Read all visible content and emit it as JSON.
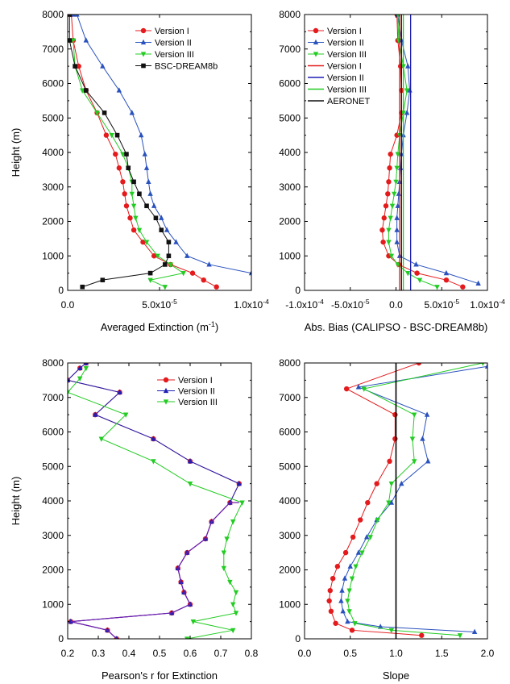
{
  "colors": {
    "red": "#e41a1c",
    "blue": "#1f1fb4",
    "blue2": "#2a52be",
    "green": "#22cc22",
    "black": "#111111",
    "purple": "#6a1fb0"
  },
  "chart_data": [
    {
      "id": "tl",
      "type": "line",
      "xlabel": "Averaged Extinction (m",
      "xlabel_sup": "-1",
      "xlabel_end": ")",
      "ylabel": "Height (m)",
      "xlim": [
        0,
        0.0001
      ],
      "ylim": [
        0,
        8000
      ],
      "xticks": [
        0,
        5e-05,
        0.0001
      ],
      "xtick_labels": [
        "0.0",
        "5.0x10",
        "1.0x10"
      ],
      "xtick_sups": [
        "",
        "-5",
        "-4"
      ],
      "yticks": [
        0,
        1000,
        2000,
        3000,
        4000,
        5000,
        6000,
        7000,
        8000
      ],
      "ytick_labels": [
        "0",
        "1000",
        "2000",
        "3000",
        "4000",
        "5000",
        "6000",
        "7000",
        "8000"
      ],
      "legend_position": "top-right",
      "series": [
        {
          "name": "Version I",
          "color": "red",
          "marker": "circle",
          "x": [
            8.1e-05,
            7.4e-05,
            6.8e-05,
            5.6e-05,
            4.7e-05,
            4.1e-05,
            3.6e-05,
            3.4e-05,
            3.2e-05,
            3.1e-05,
            3e-05,
            2.8e-05,
            2.6e-05,
            2.1e-05,
            1.6e-05,
            1e-05,
            6e-06,
            3e-06,
            2e-06
          ],
          "y": [
            100,
            300,
            500,
            750,
            1000,
            1400,
            1750,
            2100,
            2450,
            2800,
            3150,
            3550,
            3950,
            4500,
            5150,
            5800,
            6500,
            7250,
            8000
          ]
        },
        {
          "name": "Version II",
          "color": "blue2",
          "marker": "triangle-up",
          "x": [
            0.0001,
            7.7e-05,
            6.5e-05,
            5.9e-05,
            5.4e-05,
            5.1e-05,
            4.7e-05,
            4.5e-05,
            4.4e-05,
            4.3e-05,
            4.2e-05,
            4e-05,
            3.5e-05,
            2.8e-05,
            1.9e-05,
            1e-05,
            5e-06,
            3e-06
          ],
          "y": [
            500,
            750,
            1000,
            1400,
            1750,
            2100,
            2450,
            2800,
            3150,
            3550,
            3950,
            4500,
            5150,
            5800,
            6500,
            7250,
            8000,
            8000
          ]
        },
        {
          "name": "Version III",
          "color": "green",
          "marker": "triangle-down",
          "x": [
            5.3e-05,
            4.5e-05,
            6.3e-05,
            5.6e-05,
            4.9e-05,
            4.3e-05,
            3.9e-05,
            3.7e-05,
            3.6e-05,
            3.5e-05,
            3.5e-05,
            3.3e-05,
            3e-05,
            2.4e-05,
            1.6e-05,
            8e-06,
            4e-06,
            3e-06
          ],
          "y": [
            100,
            300,
            500,
            750,
            1000,
            1400,
            1750,
            2100,
            2450,
            2800,
            3150,
            3550,
            3950,
            4500,
            5150,
            5800,
            6500,
            7250
          ]
        },
        {
          "name": "BSC-DREAM8b",
          "color": "black",
          "marker": "square",
          "x": [
            8e-06,
            1.9e-05,
            4.5e-05,
            5.3e-05,
            5.5e-05,
            5.5e-05,
            5.1e-05,
            4.8e-05,
            4.3e-05,
            3.9e-05,
            3.6e-05,
            3.3e-05,
            3.2e-05,
            2.7e-05,
            2e-05,
            1e-05,
            4e-06,
            1e-06,
            1e-06
          ],
          "y": [
            100,
            300,
            500,
            750,
            1000,
            1400,
            1750,
            2100,
            2450,
            2800,
            3150,
            3550,
            3950,
            4500,
            5150,
            5800,
            6500,
            7250,
            8000
          ]
        }
      ]
    },
    {
      "id": "tr",
      "type": "line",
      "xlabel": "Abs. Bias (CALIPSO - BSC-DREAM8b)",
      "ylabel": "",
      "xlim": [
        -0.0001,
        0.0001
      ],
      "ylim": [
        0,
        8000
      ],
      "xticks": [
        -0.0001,
        -5e-05,
        0,
        5e-05,
        0.0001
      ],
      "xtick_labels": [
        "-1.0x10",
        "-5.0x10",
        "0.0",
        "5.0x10",
        "1.0x10"
      ],
      "xtick_sups": [
        "-4",
        "-5",
        "",
        "-5",
        "-4"
      ],
      "yticks": [
        0,
        1000,
        2000,
        3000,
        4000,
        5000,
        6000,
        7000,
        8000
      ],
      "ytick_labels": [
        "0",
        "1000",
        "2000",
        "3000",
        "4000",
        "5000",
        "6000",
        "7000",
        "8000"
      ],
      "legend_position": "top-left",
      "series": [
        {
          "name": "Version I",
          "color": "red",
          "marker": "circle",
          "x": [
            7.3e-05,
            5.5e-05,
            2.3e-05,
            3e-06,
            -8e-06,
            -1.4e-05,
            -1.5e-05,
            -1.3e-05,
            -1.1e-05,
            -9e-06,
            -8e-06,
            -7e-06,
            -6e-06,
            1e-06,
            6e-06,
            6e-06,
            5e-06,
            2e-06,
            1e-06
          ],
          "y": [
            100,
            300,
            500,
            750,
            1000,
            1400,
            1750,
            2100,
            2450,
            2800,
            3150,
            3550,
            3950,
            4500,
            5150,
            5800,
            6500,
            7250,
            8000
          ]
        },
        {
          "name": "Version II",
          "color": "blue2",
          "marker": "triangle-up",
          "x": [
            9e-05,
            5.5e-05,
            2.2e-05,
            4e-06,
            1e-06,
            1e-06,
            1e-06,
            2e-06,
            3e-06,
            4e-06,
            5e-06,
            6e-06,
            8e-06,
            1.2e-05,
            1.5e-05,
            1.3e-05,
            6e-06,
            2e-06
          ],
          "y": [
            200,
            500,
            750,
            1000,
            1400,
            1750,
            2100,
            2450,
            2800,
            3150,
            3550,
            3950,
            4500,
            5150,
            5800,
            6500,
            7250,
            8000
          ]
        },
        {
          "name": "Version III",
          "color": "green",
          "marker": "triangle-down",
          "x": [
            4.5e-05,
            2.6e-05,
            1.3e-05,
            2e-06,
            -5e-06,
            -8e-06,
            -8e-06,
            -6e-06,
            -4e-06,
            -2e-06,
            0.0,
            1e-06,
            2e-06,
            4e-06,
            8e-06,
            1.2e-05,
            8e-06,
            3e-06,
            2e-06
          ],
          "y": [
            100,
            300,
            500,
            750,
            1000,
            1400,
            1750,
            2100,
            2450,
            2800,
            3150,
            3550,
            3950,
            4500,
            5150,
            5800,
            6500,
            7250,
            8000
          ]
        },
        {
          "name": "Version I",
          "color": "red",
          "marker": "none",
          "vline": 4e-06
        },
        {
          "name": "Version II",
          "color": "blue",
          "marker": "none",
          "vline": 1.6e-05
        },
        {
          "name": "Version III",
          "color": "green",
          "marker": "none",
          "vline": 8e-06
        },
        {
          "name": "AERONET",
          "color": "black",
          "marker": "none",
          "vline": 6e-06
        }
      ]
    },
    {
      "id": "bl",
      "type": "line",
      "xlabel": "Pearson's r for Extinction",
      "ylabel": "Height (m)",
      "xlim": [
        0.2,
        0.8
      ],
      "ylim": [
        0,
        8000
      ],
      "xticks": [
        0.2,
        0.3,
        0.4,
        0.5,
        0.6,
        0.7,
        0.8
      ],
      "xtick_labels": [
        "0.2",
        "0.3",
        "0.4",
        "0.5",
        "0.6",
        "0.7",
        "0.8"
      ],
      "xtick_sups": [
        "",
        "",
        "",
        "",
        "",
        "",
        ""
      ],
      "yticks": [
        0,
        1000,
        2000,
        3000,
        4000,
        5000,
        6000,
        7000,
        8000
      ],
      "ytick_labels": [
        "0",
        "1000",
        "2000",
        "3000",
        "4000",
        "5000",
        "6000",
        "7000",
        "8000"
      ],
      "legend_position": "top-right",
      "series": [
        {
          "name": "Version I",
          "color": "red",
          "marker": "circle",
          "x": [
            0.36,
            0.33,
            0.21,
            0.54,
            0.6,
            0.58,
            0.57,
            0.56,
            0.59,
            0.65,
            0.67,
            0.73,
            0.76,
            0.6,
            0.48,
            0.29,
            0.37,
            0.2,
            0.24,
            0.26
          ],
          "y": [
            0,
            250,
            500,
            750,
            1000,
            1350,
            1650,
            2050,
            2500,
            2900,
            3400,
            3950,
            4500,
            5150,
            5800,
            6500,
            7150,
            7500,
            7850,
            8000
          ]
        },
        {
          "name": "Version II",
          "color": "blue",
          "marker": "triangle-up",
          "x": [
            0.36,
            0.33,
            0.21,
            0.54,
            0.6,
            0.58,
            0.57,
            0.56,
            0.59,
            0.65,
            0.67,
            0.73,
            0.76,
            0.6,
            0.48,
            0.29,
            0.37,
            0.2,
            0.24,
            0.26
          ],
          "y": [
            0,
            250,
            500,
            750,
            1000,
            1350,
            1650,
            2050,
            2500,
            2900,
            3400,
            3950,
            4500,
            5150,
            5800,
            6500,
            7150,
            7500,
            7850,
            8000
          ]
        },
        {
          "name": "Version III",
          "color": "green",
          "marker": "triangle-down",
          "x": [
            0.59,
            0.74,
            0.61,
            0.75,
            0.74,
            0.75,
            0.73,
            0.71,
            0.71,
            0.72,
            0.74,
            0.77,
            0.6,
            0.48,
            0.31,
            0.39,
            0.2,
            0.24,
            0.26
          ],
          "y": [
            0,
            250,
            500,
            750,
            1000,
            1350,
            1650,
            2050,
            2500,
            2900,
            3400,
            3950,
            4500,
            5150,
            5800,
            6500,
            7150,
            7550,
            7850
          ]
        },
        {
          "name": "",
          "color": "purple",
          "marker": "none",
          "overlay": true,
          "x": [
            0.36,
            0.33,
            0.21,
            0.54,
            0.6,
            0.58,
            0.57,
            0.56,
            0.59,
            0.65,
            0.67,
            0.73,
            0.76
          ],
          "y": [
            0,
            250,
            500,
            750,
            1000,
            1350,
            1650,
            2050,
            2500,
            2900,
            3400,
            3950,
            3950
          ]
        }
      ]
    },
    {
      "id": "br",
      "type": "line",
      "xlabel": "Slope",
      "ylabel": "",
      "xlim": [
        0,
        2
      ],
      "ylim": [
        0,
        8000
      ],
      "xticks": [
        0,
        0.5,
        1,
        1.5,
        2
      ],
      "xtick_labels": [
        "0.0",
        "0.5",
        "1.0",
        "1.5",
        "2.0"
      ],
      "xtick_sups": [
        "",
        "",
        "",
        "",
        ""
      ],
      "yticks": [
        0,
        1000,
        2000,
        3000,
        4000,
        5000,
        6000,
        7000,
        8000
      ],
      "ytick_labels": [
        "0",
        "1000",
        "2000",
        "3000",
        "4000",
        "5000",
        "6000",
        "7000",
        "8000"
      ],
      "legend_position": "none",
      "vline_x": 1.0,
      "series": [
        {
          "name": "Version I",
          "color": "red",
          "marker": "circle",
          "x": [
            1.28,
            0.52,
            0.34,
            0.29,
            0.27,
            0.28,
            0.31,
            0.36,
            0.45,
            0.53,
            0.61,
            0.69,
            0.79,
            0.93,
            0.99,
            0.99,
            0.46,
            1.25
          ],
          "y": [
            100,
            250,
            450,
            800,
            1100,
            1400,
            1750,
            2100,
            2500,
            2950,
            3450,
            3950,
            4500,
            5150,
            5800,
            6500,
            7250,
            8000
          ]
        },
        {
          "name": "Version II",
          "color": "blue2",
          "marker": "triangle-up",
          "x": [
            1.86,
            0.83,
            0.47,
            0.42,
            0.4,
            0.41,
            0.44,
            0.5,
            0.59,
            0.68,
            0.79,
            0.95,
            1.06,
            1.35,
            1.29,
            1.34,
            0.59,
            2.0
          ],
          "y": [
            200,
            350,
            500,
            800,
            1100,
            1400,
            1750,
            2100,
            2500,
            2950,
            3450,
            3950,
            4500,
            5150,
            5800,
            6500,
            7300,
            7900
          ]
        },
        {
          "name": "Version III",
          "color": "green",
          "marker": "triangle-down",
          "x": [
            1.7,
            0.95,
            0.55,
            0.49,
            0.47,
            0.49,
            0.52,
            0.56,
            0.63,
            0.72,
            0.8,
            0.92,
            0.95,
            1.2,
            1.18,
            1.2,
            0.65,
            1.95
          ],
          "y": [
            100,
            250,
            450,
            800,
            1100,
            1400,
            1750,
            2100,
            2500,
            2950,
            3450,
            3950,
            4500,
            5150,
            5800,
            6500,
            7250,
            8000
          ]
        }
      ]
    }
  ]
}
